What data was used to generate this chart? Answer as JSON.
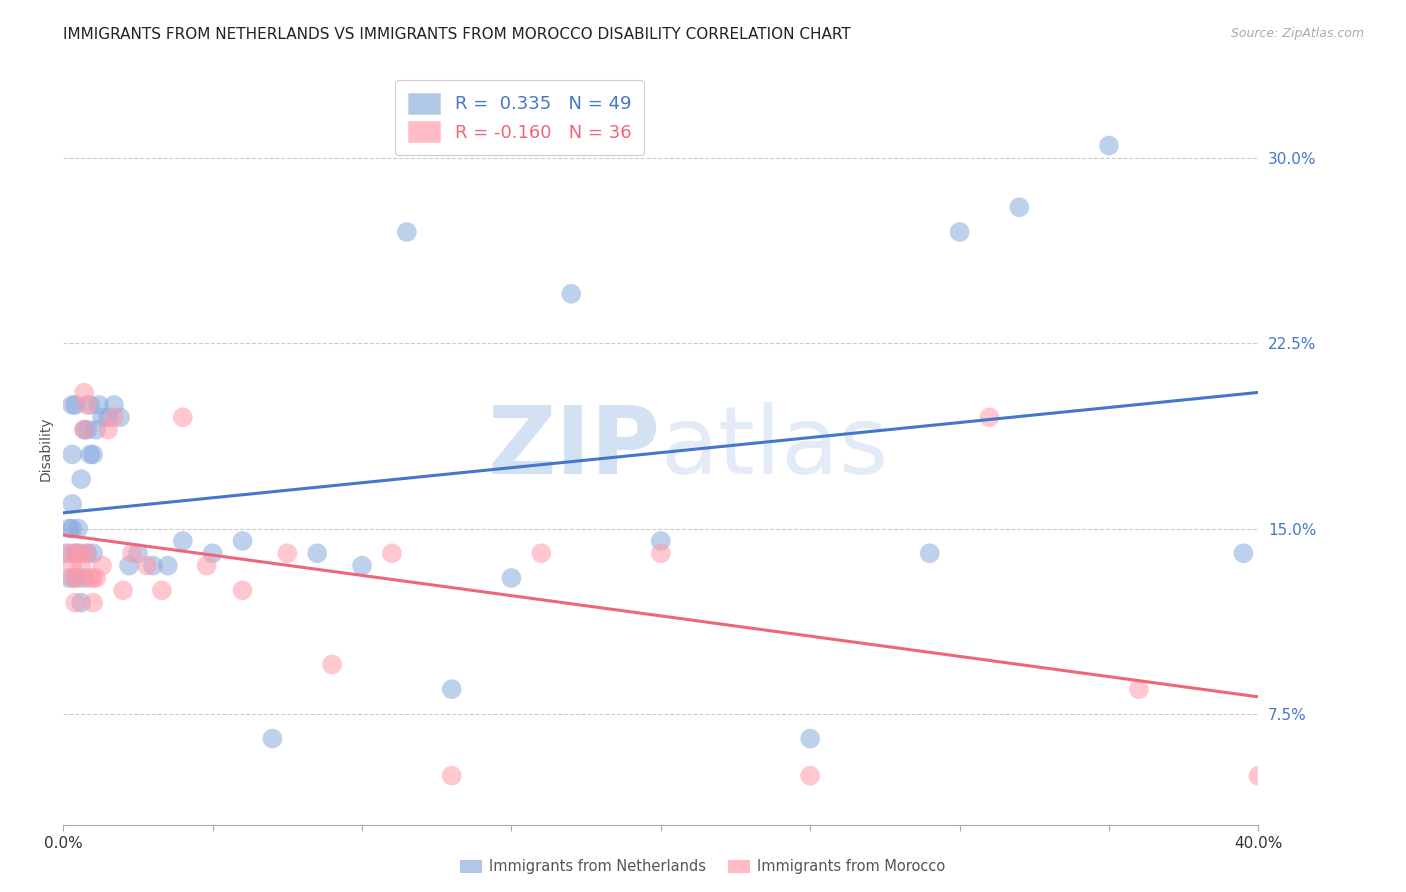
{
  "title": "IMMIGRANTS FROM NETHERLANDS VS IMMIGRANTS FROM MOROCCO DISABILITY CORRELATION CHART",
  "source": "Source: ZipAtlas.com",
  "ylabel": "Disability",
  "yticks": [
    0.075,
    0.15,
    0.225,
    0.3
  ],
  "ytick_labels": [
    "7.5%",
    "15.0%",
    "22.5%",
    "30.0%"
  ],
  "xlim": [
    0.0,
    0.4
  ],
  "ylim": [
    0.03,
    0.335
  ],
  "netherlands_R": 0.335,
  "netherlands_N": 49,
  "morocco_R": -0.16,
  "morocco_N": 36,
  "netherlands_color": "#88AADD",
  "morocco_color": "#FF99AA",
  "trendline_blue": "#4477CC",
  "trendline_pink": "#EE6677",
  "background_color": "#FFFFFF",
  "netherlands_x": [
    0.001,
    0.002,
    0.002,
    0.003,
    0.003,
    0.003,
    0.003,
    0.004,
    0.004,
    0.004,
    0.005,
    0.005,
    0.006,
    0.006,
    0.007,
    0.007,
    0.008,
    0.008,
    0.009,
    0.009,
    0.01,
    0.01,
    0.011,
    0.012,
    0.013,
    0.015,
    0.017,
    0.019,
    0.022,
    0.025,
    0.03,
    0.035,
    0.04,
    0.05,
    0.06,
    0.07,
    0.085,
    0.1,
    0.115,
    0.13,
    0.15,
    0.17,
    0.2,
    0.25,
    0.29,
    0.3,
    0.32,
    0.35,
    0.395
  ],
  "netherlands_y": [
    0.14,
    0.13,
    0.15,
    0.15,
    0.16,
    0.18,
    0.2,
    0.14,
    0.13,
    0.2,
    0.14,
    0.15,
    0.12,
    0.17,
    0.13,
    0.19,
    0.14,
    0.19,
    0.2,
    0.18,
    0.14,
    0.18,
    0.19,
    0.2,
    0.195,
    0.195,
    0.2,
    0.195,
    0.135,
    0.14,
    0.135,
    0.135,
    0.145,
    0.14,
    0.145,
    0.065,
    0.14,
    0.135,
    0.27,
    0.085,
    0.13,
    0.245,
    0.145,
    0.065,
    0.14,
    0.27,
    0.28,
    0.305,
    0.14
  ],
  "morocco_x": [
    0.002,
    0.003,
    0.003,
    0.004,
    0.004,
    0.005,
    0.006,
    0.006,
    0.007,
    0.007,
    0.008,
    0.008,
    0.009,
    0.01,
    0.01,
    0.011,
    0.013,
    0.015,
    0.017,
    0.02,
    0.023,
    0.028,
    0.033,
    0.04,
    0.048,
    0.06,
    0.075,
    0.09,
    0.11,
    0.13,
    0.16,
    0.2,
    0.25,
    0.31,
    0.36,
    0.4
  ],
  "morocco_y": [
    0.14,
    0.13,
    0.135,
    0.14,
    0.12,
    0.13,
    0.14,
    0.135,
    0.205,
    0.19,
    0.2,
    0.14,
    0.13,
    0.13,
    0.12,
    0.13,
    0.135,
    0.19,
    0.195,
    0.125,
    0.14,
    0.135,
    0.125,
    0.195,
    0.135,
    0.125,
    0.14,
    0.095,
    0.14,
    0.05,
    0.14,
    0.14,
    0.05,
    0.195,
    0.085,
    0.05
  ],
  "watermark_zip": "ZIP",
  "watermark_atlas": "atlas",
  "title_fontsize": 11,
  "source_fontsize": 9,
  "axis_label_fontsize": 10,
  "tick_fontsize": 11,
  "legend_fontsize": 13
}
